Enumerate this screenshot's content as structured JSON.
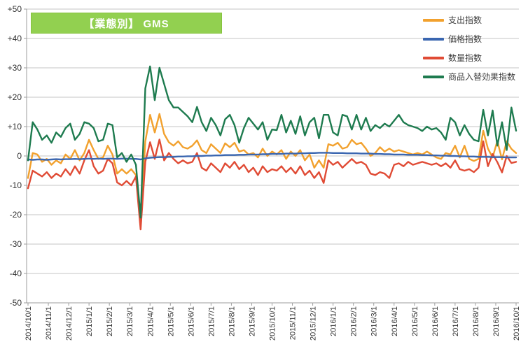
{
  "title": {
    "text": "【業態別】 GMS",
    "bg_color": "#92D050",
    "text_color": "#FFFFFF"
  },
  "colors": {
    "orange": "#F2A12E",
    "blue": "#3A66B0",
    "red": "#E04B35",
    "green": "#1E7B4F",
    "gridline": "#C6C6C6",
    "axis": "#9E9E9E",
    "tick_text": "#333333"
  },
  "legend": [
    {
      "label": "支出指数",
      "color": "orange"
    },
    {
      "label": "価格指数",
      "color": "blue"
    },
    {
      "label": "数量指数",
      "color": "red"
    },
    {
      "label": "商品入替効果指数",
      "color": "green"
    }
  ],
  "chart_data": {
    "type": "line",
    "title": "【業態別】 GMS",
    "ylim": [
      -50,
      50
    ],
    "y_tick_step": 10,
    "y_tick_labels": [
      "+50",
      "+40",
      "+30",
      "+20",
      "+10",
      "0",
      "-10",
      "-20",
      "-30",
      "-40",
      "-50"
    ],
    "grid": true,
    "legend_position": "top-right",
    "x_label_rotation": -90,
    "x_month_labels": [
      "2014/10/1",
      "2014/11/1",
      "2014/12/1",
      "2015/1/1",
      "2015/2/1",
      "2015/3/1",
      "2015/4/1",
      "2015/5/1",
      "2015/6/1",
      "2015/7/1",
      "2015/8/1",
      "2015/9/1",
      "2015/10/1",
      "2015/11/1",
      "2015/12/1",
      "2016/1/1",
      "2016/2/1",
      "2016/3/1",
      "2016/4/1",
      "2016/5/1",
      "2016/6/1",
      "2016/7/1",
      "2016/8/1",
      "2016/9/1",
      "2016/10/1"
    ],
    "x_unit": "weekly",
    "series": [
      {
        "name": "支出指数",
        "color": "orange",
        "values": [
          -7.5,
          1,
          0.5,
          -2,
          -1,
          -3,
          -1.5,
          -2.5,
          0.5,
          -1,
          2,
          -1.5,
          1,
          5.5,
          2,
          -1,
          -0.5,
          3.5,
          0.5,
          -6,
          -4.5,
          -6,
          -4.5,
          -6.5,
          -23,
          5,
          14,
          8,
          14.3,
          7.5,
          4.7,
          3.5,
          5,
          3,
          2.5,
          3.5,
          5.3,
          2,
          1,
          4,
          2.5,
          1,
          4.3,
          3,
          4.5,
          1.5,
          2,
          0.5,
          1,
          -0.5,
          2.5,
          0,
          1.5,
          0.5,
          2,
          -1,
          1.5,
          0,
          2,
          -1.5,
          0.5,
          -4,
          -1.5,
          -4,
          4,
          3.5,
          4.5,
          2.5,
          3,
          5.5,
          4,
          4.5,
          2.5,
          0,
          1,
          3,
          1.5,
          2.5,
          1.5,
          2,
          1.5,
          1,
          0.5,
          1,
          0.5,
          1.5,
          0.5,
          -0.5,
          -1,
          1,
          0.5,
          3.5,
          -0.5,
          3.5,
          -1,
          -1.7,
          -1,
          8.6,
          2.5,
          -0.5,
          5.1,
          -1.2,
          5,
          2.4,
          1
        ]
      },
      {
        "name": "数量指数",
        "color": "red",
        "values": [
          -11,
          -5,
          -6,
          -7,
          -5.5,
          -7.5,
          -6,
          -7,
          -4.5,
          -6.5,
          -3.5,
          -6,
          -1.5,
          2,
          -3.5,
          -6,
          -5,
          -1,
          -2.5,
          -9,
          -10,
          -8.5,
          -10,
          -7,
          -25,
          -2,
          4.7,
          -1,
          5.6,
          -1.5,
          1,
          -1,
          -2.5,
          -1.5,
          -2.5,
          -2,
          1,
          -4,
          -5,
          -2.5,
          -4,
          -5.5,
          -2.5,
          -4,
          -2,
          -4.5,
          -3,
          -5.5,
          -4,
          -6.5,
          -3.5,
          -5.5,
          -4.5,
          -5,
          -3.5,
          -5.5,
          -4,
          -6,
          -3.5,
          -6.5,
          -5,
          -7.5,
          -5.5,
          -9.2,
          -1.5,
          -3,
          -2,
          -4,
          -2.5,
          -1,
          -2.5,
          -2,
          -3,
          -6,
          -6.5,
          -5.5,
          -6,
          -7.5,
          -3,
          -2.5,
          -3.5,
          -2,
          -3,
          -2.5,
          -2,
          -2.5,
          -3,
          -2.5,
          -3.5,
          -2.5,
          -4,
          -1.5,
          -4.5,
          -5,
          -4.5,
          -5.5,
          -4,
          5,
          -3.5,
          0.7,
          -2.1,
          -5.6,
          0,
          -2.4,
          -2
        ]
      },
      {
        "name": "価格指数",
        "color": "blue",
        "values": [
          -1.2,
          -1.3,
          -1.2,
          -1.2,
          -1.3,
          -1.2,
          -1.1,
          -1.2,
          -1.1,
          -1.1,
          -1,
          -1.1,
          -1,
          -0.9,
          -1,
          -0.9,
          -1,
          -0.9,
          -0.9,
          -1,
          -0.9,
          -0.9,
          -1,
          -1,
          -1.2,
          -0.8,
          -0.6,
          -0.5,
          -0.4,
          -0.4,
          -0.3,
          -0.3,
          -0.2,
          -0.2,
          -0.1,
          -0.1,
          0,
          0,
          0.1,
          0.1,
          0.2,
          0.2,
          0.3,
          0.3,
          0.3,
          0.4,
          0.4,
          0.5,
          0.5,
          0.5,
          0.6,
          0.6,
          0.7,
          0.7,
          0.7,
          0.8,
          0.8,
          0.8,
          0.9,
          0.9,
          1,
          1,
          1.1,
          1.1,
          1.1,
          1,
          1,
          1,
          0.9,
          0.9,
          0.9,
          0.8,
          0.8,
          0.8,
          0.7,
          0.7,
          0.6,
          0.6,
          0.5,
          0.5,
          0.5,
          0.4,
          0.4,
          0.4,
          0.3,
          0.3,
          0.2,
          0.2,
          0.1,
          0.1,
          0,
          0,
          -0.1,
          -0.1,
          -0.2,
          -0.2,
          -0.3,
          -0.3,
          -0.3,
          -0.4,
          -0.4,
          -0.4,
          -0.5,
          -0.5,
          -0.5
        ]
      },
      {
        "name": "商品入替効果指数",
        "color": "green",
        "values": [
          -1.5,
          11.5,
          9,
          5.5,
          7,
          4.5,
          8,
          6.5,
          9.5,
          11,
          5.5,
          7.5,
          11.5,
          11,
          9.5,
          5,
          5.5,
          11,
          10.5,
          -0.5,
          1,
          -2,
          0.5,
          -3,
          -21,
          23,
          30.5,
          19,
          30,
          24.5,
          19,
          16.5,
          16.5,
          15,
          13.5,
          11.5,
          16.7,
          11.5,
          8.5,
          13,
          10.5,
          7,
          12.5,
          14,
          10.5,
          4.5,
          9.5,
          13,
          11,
          9,
          11.5,
          5.5,
          9,
          8.8,
          14,
          8,
          12,
          7.5,
          13.5,
          7,
          11.5,
          13,
          6,
          14,
          14,
          8,
          7,
          14,
          13.5,
          9,
          14,
          9,
          13,
          8.5,
          10.5,
          9.5,
          11,
          10,
          12,
          14,
          11.5,
          10.5,
          10,
          9.5,
          8.5,
          10,
          9,
          9.5,
          8,
          5.5,
          13,
          11.5,
          7,
          10.5,
          7.5,
          5.5,
          5,
          15.7,
          7,
          15.5,
          3.5,
          11.5,
          2,
          16.5,
          8.6
        ]
      }
    ],
    "plot_order": [
      "支出指数",
      "数量指数",
      "価格指数",
      "商品入替効果指数"
    ]
  }
}
